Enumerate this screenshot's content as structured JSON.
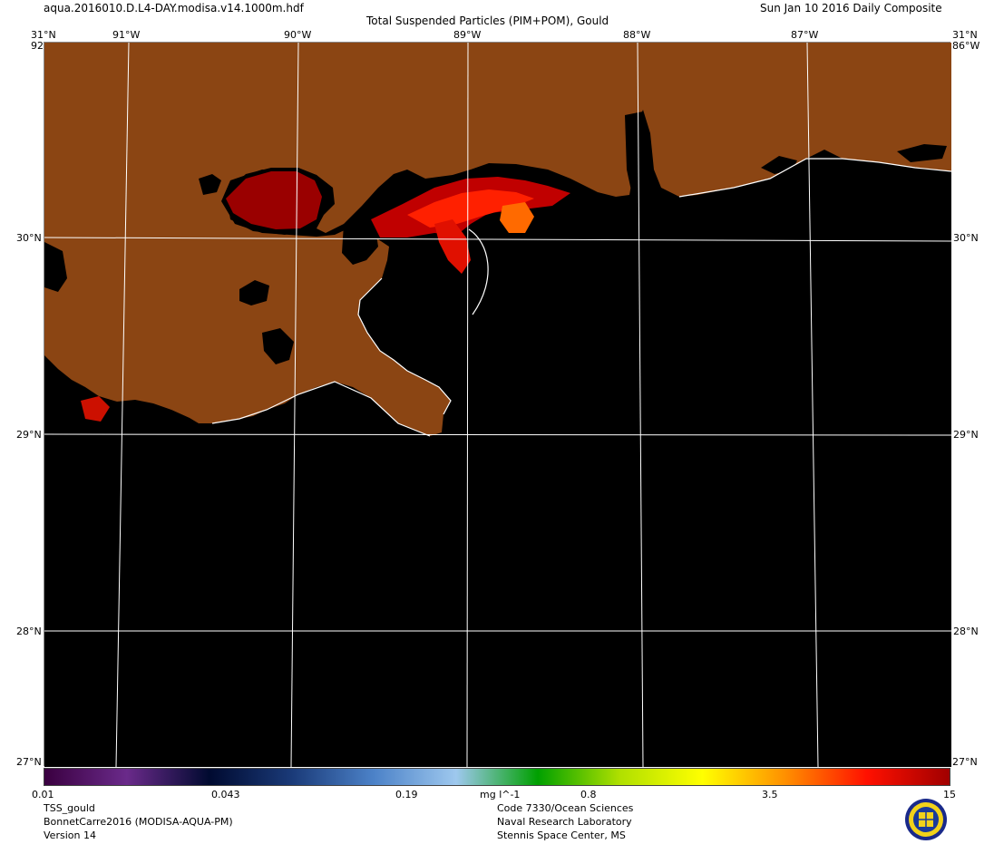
{
  "header": {
    "filename": "aqua.2016010.D.L4-DAY.modisa.v14.1000m.hdf",
    "product_title": "Total Suspended Particles (PIM+POM), Gould",
    "date_label": "Sun Jan 10 2016 Daily Composite"
  },
  "axes": {
    "lon_labels": [
      "91°W",
      "90°W",
      "89°W",
      "88°W",
      "87°W"
    ],
    "lat_labels": [
      "31°N",
      "30°N",
      "29°N",
      "28°N"
    ],
    "corner_lat_top": "31°N",
    "corner_lat_bottom": "27°N",
    "corner_lon_left": "92°W",
    "corner_lon_right": "86°W"
  },
  "colorbar": {
    "tick_labels": [
      "0.01",
      "0.043",
      "0.19",
      "0.8",
      "3.5",
      "15"
    ],
    "unit": "mg l^-1",
    "stops": [
      "#3a0040",
      "#6a2a8a",
      "#000a30",
      "#1a3a78",
      "#4c82c8",
      "#9ec8ee",
      "#00a000",
      "#b0e000",
      "#ffff00",
      "#ff9000",
      "#ff1000",
      "#a00000"
    ]
  },
  "footer": {
    "left": [
      "TSS_gould",
      "BonnetCarre2016 (MODISA-AQUA-PM)",
      "Version 14"
    ],
    "center": [
      "Code 7330/Ocean Sciences",
      "Naval Research Laboratory",
      "Stennis Space Center, MS"
    ]
  },
  "colors": {
    "land": "#8b4513",
    "water_no_data": "#000000",
    "coastline": "#ffffff",
    "gridline": "#ffffff"
  }
}
